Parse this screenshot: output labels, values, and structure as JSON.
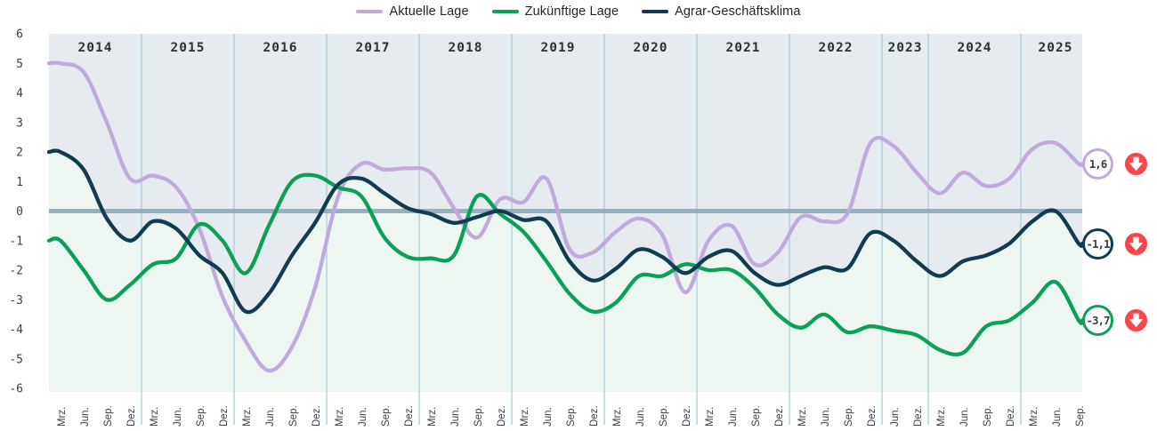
{
  "legend": {
    "items": [
      {
        "label": "Aktuelle Lage",
        "color": "#c1a9db"
      },
      {
        "label": "Zukünftige Lage",
        "color": "#0aa057"
      },
      {
        "label": "Agrar-Geschäftsklima",
        "color": "#103c50"
      }
    ]
  },
  "chart_data": {
    "type": "line",
    "title": "",
    "xlabel": "",
    "ylabel": "",
    "ylim": [
      -6,
      6
    ],
    "y_ticks": [
      6,
      5,
      4,
      3,
      2,
      1,
      0,
      -1,
      -2,
      -3,
      -4,
      -5,
      -6
    ],
    "zero_line": 0,
    "grid": "vertical-year-separators",
    "legend_position": "top-center",
    "x_labels": [
      "Mrz.",
      "Jun.",
      "Sep.",
      "Dez.",
      "Mrz.",
      "Jun.",
      "Sep.",
      "Dez.",
      "Mrz.",
      "Jun.",
      "Sep.",
      "Dez.",
      "Mrz.",
      "Jun.",
      "Sep.",
      "Dez.",
      "Mrz.",
      "Jun.",
      "Sep.",
      "Dez.",
      "Mrz.",
      "Jun.",
      "Sep.",
      "Dez.",
      "Mrz.",
      "Jun.",
      "Sep.",
      "Dez.",
      "Mrz.",
      "Jun.",
      "Sep.",
      "Dez.",
      "Mrz.",
      "Jun.",
      "Sep.",
      "Dez.",
      "Jun.",
      "Dez.",
      "Mrz.",
      "Jun.",
      "Sep.",
      "Dez.",
      "Mrz.",
      "Jun.",
      "Sep."
    ],
    "year_bands": [
      {
        "year": "2014",
        "from": 0,
        "to": 3
      },
      {
        "year": "2015",
        "from": 4,
        "to": 7
      },
      {
        "year": "2016",
        "from": 8,
        "to": 11
      },
      {
        "year": "2017",
        "from": 12,
        "to": 15
      },
      {
        "year": "2018",
        "from": 16,
        "to": 19
      },
      {
        "year": "2019",
        "from": 20,
        "to": 23
      },
      {
        "year": "2020",
        "from": 24,
        "to": 27
      },
      {
        "year": "2021",
        "from": 28,
        "to": 31
      },
      {
        "year": "2022",
        "from": 32,
        "to": 35
      },
      {
        "year": "2023",
        "from": 36,
        "to": 37
      },
      {
        "year": "2024",
        "from": 38,
        "to": 41
      },
      {
        "year": "2025",
        "from": 42,
        "to": 44
      }
    ],
    "series": [
      {
        "name": "Aktuelle Lage",
        "color": "#c1a9db",
        "values": [
          5.0,
          4.7,
          3.0,
          1.1,
          1.2,
          0.8,
          -0.6,
          -2.9,
          -4.4,
          -5.4,
          -4.6,
          -2.6,
          0.5,
          1.6,
          1.4,
          1.45,
          1.3,
          0.1,
          -0.9,
          0.4,
          0.3,
          1.1,
          -1.3,
          -1.4,
          -0.7,
          -0.25,
          -0.8,
          -2.75,
          -1.0,
          -0.5,
          -1.8,
          -1.4,
          -0.2,
          -0.35,
          -0.1,
          2.3,
          2.2,
          1.3,
          0.6,
          1.3,
          0.85,
          1.1,
          2.1,
          2.3,
          1.6
        ]
      },
      {
        "name": "Zukünftige Lage",
        "color": "#0aa057",
        "values": [
          -1.0,
          -2.0,
          -3.0,
          -2.5,
          -1.8,
          -1.6,
          -0.45,
          -1.0,
          -2.1,
          -0.5,
          1.0,
          1.2,
          0.8,
          0.5,
          -0.9,
          -1.55,
          -1.6,
          -1.5,
          0.5,
          -0.1,
          -0.7,
          -1.7,
          -2.8,
          -3.4,
          -3.1,
          -2.2,
          -2.2,
          -1.8,
          -2.0,
          -2.0,
          -2.6,
          -3.5,
          -3.95,
          -3.5,
          -4.1,
          -3.9,
          -4.05,
          -4.2,
          -4.7,
          -4.8,
          -3.9,
          -3.7,
          -3.1,
          -2.4,
          -3.7
        ]
      },
      {
        "name": "Agrar-Geschäftsklima",
        "color": "#103c50",
        "values": [
          2.0,
          1.4,
          -0.25,
          -1.0,
          -0.35,
          -0.6,
          -1.5,
          -2.1,
          -3.4,
          -2.8,
          -1.5,
          -0.4,
          0.9,
          1.1,
          0.6,
          0.1,
          -0.1,
          -0.4,
          -0.2,
          0.0,
          -0.3,
          -0.35,
          -1.7,
          -2.35,
          -1.95,
          -1.3,
          -1.55,
          -2.1,
          -1.55,
          -1.35,
          -2.1,
          -2.5,
          -2.2,
          -1.9,
          -1.95,
          -0.75,
          -1.0,
          -1.7,
          -2.2,
          -1.7,
          -1.5,
          -1.1,
          -0.35,
          0.0,
          -1.1
        ]
      }
    ],
    "background": {
      "above_agrar_line": "#e5ebee",
      "below_agrar_line": "#eef6f1",
      "zero_line_color": "#8caab9",
      "year_line_color": "#aed0dc",
      "year_text_color": "#2d3136",
      "tick_text_color": "#3c4046"
    }
  },
  "annotations": [
    {
      "series": "Aktuelle Lage",
      "value_label": "1,6",
      "value": 1.6,
      "color": "#c1a9db",
      "trend": "down",
      "trend_color": "#f5484d"
    },
    {
      "series": "Agrar-Geschäftsklima",
      "value_label": "-1,1",
      "value": -1.1,
      "color": "#103c50",
      "trend": "down",
      "trend_color": "#f5484d"
    },
    {
      "series": "Zukünftige Lage",
      "value_label": "-3,7",
      "value": -3.7,
      "color": "#0aa057",
      "trend": "down",
      "trend_color": "#f5484d"
    }
  ]
}
